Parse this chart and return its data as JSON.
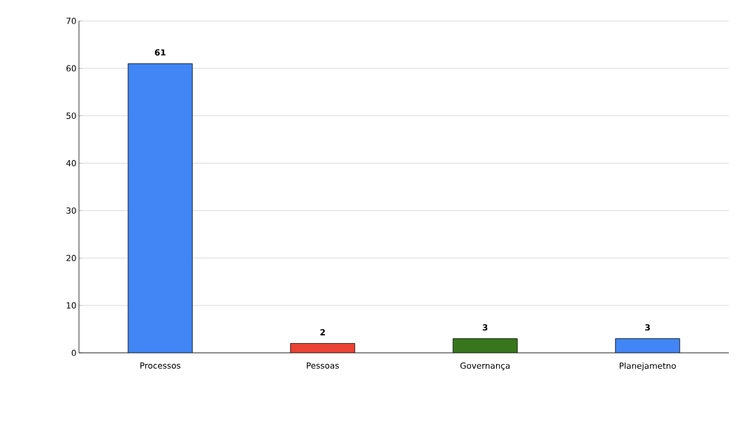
{
  "chart_data": {
    "type": "bar",
    "categories": [
      "Processos",
      "Pessoas",
      "Governança",
      "Planejametno"
    ],
    "values": [
      61,
      2,
      3,
      3
    ],
    "colors": [
      "#4285f4",
      "#ea4335",
      "#38761d",
      "#4285f4"
    ],
    "ylim": [
      0,
      70
    ],
    "yticks": [
      0,
      10,
      20,
      30,
      40,
      50,
      60,
      70
    ],
    "grid": "y",
    "data_labels": true
  }
}
